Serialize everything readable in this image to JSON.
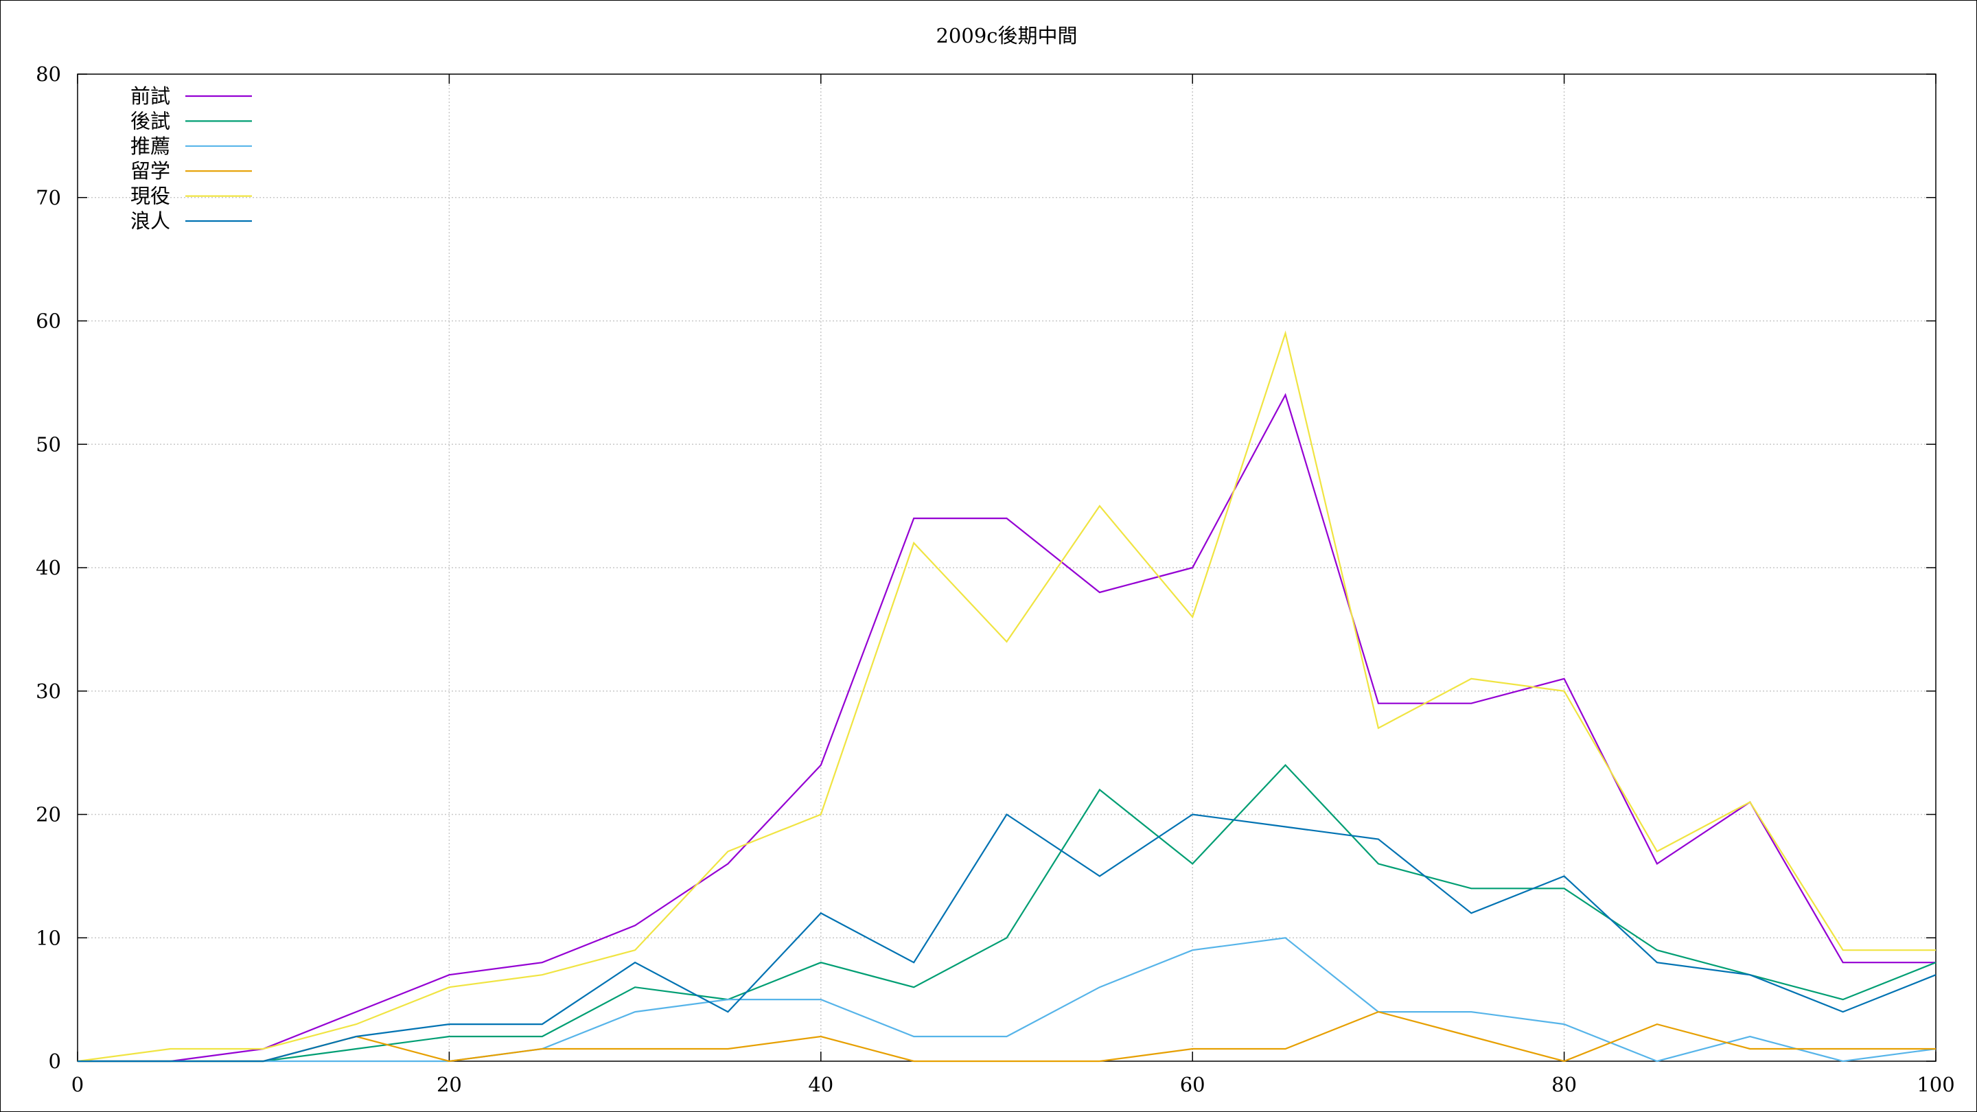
{
  "chart_data": {
    "type": "line",
    "title": "2009c後期中間",
    "xlabel": "",
    "ylabel": "",
    "xlim": [
      0,
      100
    ],
    "ylim": [
      0,
      80
    ],
    "xticks": [
      0,
      20,
      40,
      60,
      80,
      100
    ],
    "yticks": [
      0,
      10,
      20,
      30,
      40,
      50,
      60,
      70,
      80
    ],
    "grid": true,
    "legend_position": "top-left",
    "x": [
      0,
      5,
      10,
      15,
      20,
      25,
      30,
      35,
      40,
      45,
      50,
      55,
      60,
      65,
      70,
      75,
      80,
      85,
      90,
      95,
      100
    ],
    "series": [
      {
        "name": "前試",
        "color": "#9400d3",
        "values": [
          0,
          0,
          1,
          4,
          7,
          8,
          11,
          16,
          24,
          44,
          44,
          38,
          40,
          54,
          29,
          29,
          31,
          16,
          21,
          8,
          8
        ]
      },
      {
        "name": "後試",
        "color": "#009e73",
        "values": [
          0,
          0,
          0,
          1,
          2,
          2,
          6,
          5,
          8,
          6,
          10,
          22,
          16,
          24,
          16,
          14,
          14,
          9,
          7,
          5,
          8
        ]
      },
      {
        "name": "推薦",
        "color": "#56b4e9",
        "values": [
          0,
          0,
          0,
          0,
          0,
          1,
          4,
          5,
          5,
          2,
          2,
          6,
          9,
          10,
          4,
          4,
          3,
          0,
          2,
          0,
          1
        ]
      },
      {
        "name": "留学",
        "color": "#e69f00",
        "values": [
          0,
          0,
          0,
          2,
          0,
          1,
          1,
          1,
          2,
          0,
          0,
          0,
          1,
          1,
          4,
          2,
          0,
          3,
          1,
          1,
          1
        ]
      },
      {
        "name": "現役",
        "color": "#f0e442",
        "values": [
          0,
          1,
          1,
          3,
          6,
          7,
          9,
          17,
          20,
          42,
          34,
          45,
          36,
          59,
          27,
          31,
          30,
          17,
          21,
          9,
          9
        ]
      },
      {
        "name": "浪人",
        "color": "#0072b2",
        "values": [
          0,
          0,
          0,
          2,
          3,
          3,
          8,
          4,
          12,
          8,
          20,
          15,
          20,
          19,
          18,
          12,
          15,
          8,
          7,
          4,
          7
        ]
      }
    ]
  }
}
